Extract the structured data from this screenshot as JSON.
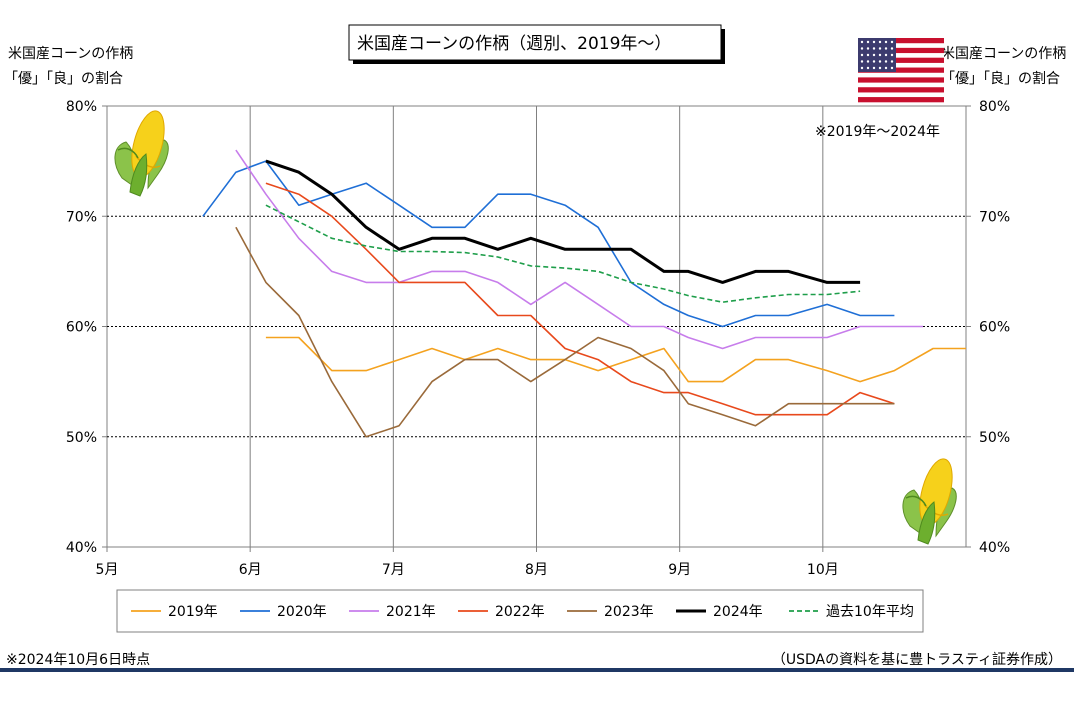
{
  "title": "米国産コーンの作柄（週別、2019年～）",
  "left_axis_label": [
    "米国産コーンの作柄",
    "「優」「良」の割合"
  ],
  "right_axis_label": [
    "米国産コーンの作柄",
    "「優」「良」の割合"
  ],
  "period_note": "※2019年～2024年",
  "footnote_left": "※2024年10月6日時点",
  "footnote_right": "（USDAの資料を基に豊トラスティ証券作成）",
  "colors": {
    "s2019": "#F4A21F",
    "s2020": "#1F6FD6",
    "s2021": "#C77DEB",
    "s2022": "#E8491C",
    "s2023": "#9A6A3A",
    "s2024": "#000000",
    "avg10": "#1E9E4A",
    "footer_rule": "#1F3864"
  },
  "decorations": [
    "us-flag-icon",
    "corn-icon"
  ],
  "chart_data": {
    "type": "line",
    "x_unit": "month",
    "xlim": [
      5,
      11
    ],
    "x_ticks": [
      {
        "value": 5,
        "label": "5月"
      },
      {
        "value": 6,
        "label": "6月"
      },
      {
        "value": 7,
        "label": "7月"
      },
      {
        "value": 8,
        "label": "8月"
      },
      {
        "value": 9,
        "label": "9月"
      },
      {
        "value": 10,
        "label": "10月"
      }
    ],
    "ylim": [
      40,
      80
    ],
    "y_ticks": [
      {
        "value": 40,
        "label": "40%"
      },
      {
        "value": 50,
        "label": "50%"
      },
      {
        "value": 60,
        "label": "60%"
      },
      {
        "value": 70,
        "label": "70%"
      },
      {
        "value": 80,
        "label": "80%"
      }
    ],
    "grid": {
      "vertical": true,
      "horizontal_dashed": true
    },
    "legend_position": "bottom",
    "series": [
      {
        "name": "2019年",
        "key": "s2019",
        "dashed": false,
        "x": [
          6.11,
          6.34,
          6.57,
          6.81,
          7.04,
          7.27,
          7.5,
          7.73,
          7.96,
          8.2,
          8.43,
          8.66,
          8.89,
          9.06,
          9.3,
          9.53,
          9.76,
          10.03,
          10.26,
          10.5,
          10.77,
          11.0
        ],
        "y": [
          59,
          59,
          56,
          56,
          57,
          58,
          57,
          58,
          57,
          57,
          56,
          57,
          58,
          55,
          55,
          57,
          57,
          56,
          55,
          56,
          58,
          58
        ]
      },
      {
        "name": "2020年",
        "key": "s2020",
        "dashed": false,
        "x": [
          5.67,
          5.9,
          6.11,
          6.34,
          6.57,
          6.81,
          7.04,
          7.27,
          7.5,
          7.73,
          7.96,
          8.2,
          8.43,
          8.66,
          8.89,
          9.06,
          9.3,
          9.53,
          9.76,
          10.03,
          10.26,
          10.5
        ],
        "y": [
          70,
          74,
          75,
          71,
          72,
          73,
          71,
          69,
          69,
          72,
          72,
          71,
          69,
          64,
          62,
          61,
          60,
          61,
          61,
          62,
          61,
          61
        ]
      },
      {
        "name": "2021年",
        "key": "s2021",
        "dashed": false,
        "x": [
          5.9,
          6.11,
          6.34,
          6.57,
          6.81,
          7.04,
          7.27,
          7.5,
          7.73,
          7.96,
          8.2,
          8.43,
          8.66,
          8.89,
          9.06,
          9.3,
          9.53,
          9.76,
          10.03,
          10.26,
          10.5,
          10.7
        ],
        "y": [
          76,
          72,
          68,
          65,
          64,
          64,
          65,
          65,
          64,
          62,
          64,
          62,
          60,
          60,
          59,
          58,
          59,
          59,
          59,
          60,
          60,
          60
        ]
      },
      {
        "name": "2022年",
        "key": "s2022",
        "dashed": false,
        "x": [
          6.11,
          6.34,
          6.57,
          6.81,
          7.04,
          7.27,
          7.5,
          7.73,
          7.96,
          8.2,
          8.43,
          8.66,
          8.89,
          9.06,
          9.3,
          9.53,
          9.76,
          10.03,
          10.26,
          10.5
        ],
        "y": [
          73,
          72,
          70,
          67,
          64,
          64,
          64,
          61,
          61,
          58,
          57,
          55,
          54,
          54,
          53,
          52,
          52,
          52,
          54,
          53
        ]
      },
      {
        "name": "2023年",
        "key": "s2023",
        "dashed": false,
        "x": [
          5.9,
          6.11,
          6.34,
          6.57,
          6.81,
          7.04,
          7.27,
          7.5,
          7.73,
          7.96,
          8.2,
          8.43,
          8.66,
          8.89,
          9.06,
          9.3,
          9.53,
          9.76,
          10.03,
          10.26,
          10.5
        ],
        "y": [
          69,
          64,
          61,
          55,
          50,
          51,
          55,
          57,
          57,
          55,
          57,
          59,
          58,
          56,
          53,
          52,
          51,
          53,
          53,
          53,
          53
        ]
      },
      {
        "name": "2024年",
        "key": "s2024",
        "dashed": false,
        "x": [
          6.11,
          6.34,
          6.57,
          6.81,
          7.04,
          7.27,
          7.5,
          7.73,
          7.96,
          8.2,
          8.43,
          8.66,
          8.89,
          9.06,
          9.3,
          9.53,
          9.76,
          10.03,
          10.26
        ],
        "y": [
          75,
          74,
          72,
          69,
          67,
          68,
          68,
          67,
          68,
          67,
          67,
          67,
          65,
          65,
          64,
          65,
          65,
          64,
          64
        ]
      },
      {
        "name": "過去10年平均",
        "key": "avg10",
        "dashed": true,
        "x": [
          6.11,
          6.34,
          6.57,
          6.81,
          7.04,
          7.27,
          7.5,
          7.73,
          7.96,
          8.2,
          8.43,
          8.66,
          8.89,
          9.06,
          9.3,
          9.53,
          9.76,
          10.03,
          10.26
        ],
        "y": [
          71,
          69.5,
          68,
          67.3,
          66.8,
          66.8,
          66.7,
          66.3,
          65.5,
          65.3,
          65,
          64,
          63.4,
          62.8,
          62.2,
          62.6,
          62.9,
          62.9,
          63.2
        ]
      }
    ]
  }
}
